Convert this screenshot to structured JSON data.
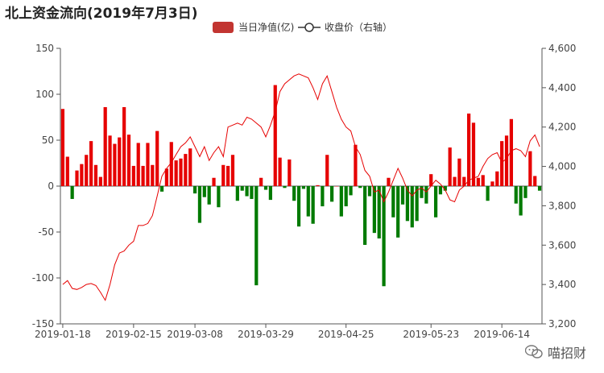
{
  "chart_data": {
    "type": "bar+line",
    "title": "北上资金流向(2019年7月3日)",
    "legend": [
      {
        "name": "当日净值(亿)",
        "kind": "bar",
        "color": "#c23531"
      },
      {
        "name": "收盘价（右轴）",
        "kind": "line",
        "color": "#333333"
      }
    ],
    "x_tick_labels": [
      "2019-01-18",
      "2019-02-15",
      "2019-03-08",
      "2019-03-29",
      "2019-04-25",
      "2019-05-23",
      "2019-06-14"
    ],
    "x_tick_index": [
      0,
      15,
      28,
      43,
      60,
      78,
      93
    ],
    "y_left": {
      "min": -150,
      "max": 150,
      "ticks": [
        -150,
        -100,
        -50,
        0,
        50,
        100,
        150
      ]
    },
    "y_right": {
      "min": 3200,
      "max": 4600,
      "ticks": [
        "3,200",
        "3,400",
        "3,600",
        "3,800",
        "4,000",
        "4,200",
        "4,400",
        "4,600"
      ]
    },
    "positive_color": "#e60000",
    "negative_color": "#007a00",
    "line_color": "#e60000",
    "net_inflow": [
      84,
      32,
      -14,
      17,
      24,
      34,
      49,
      23,
      10,
      86,
      55,
      46,
      53,
      86,
      56,
      22,
      47,
      22,
      47,
      23,
      60,
      -6,
      19,
      48,
      28,
      30,
      35,
      41,
      -8,
      -40,
      -12,
      -20,
      9,
      -23,
      23,
      22,
      34,
      -16,
      -5,
      -11,
      -14,
      -108,
      9,
      -4,
      -15,
      110,
      31,
      -2,
      29,
      -16,
      -44,
      -3,
      -33,
      -41,
      1,
      -22,
      34,
      -17,
      0,
      -33,
      -22,
      -10,
      45,
      -2,
      -64,
      -11,
      -51,
      -57,
      -109,
      9,
      -34,
      -56,
      -20,
      -38,
      -45,
      -38,
      -13,
      -19,
      13,
      -34,
      -9,
      -5,
      42,
      10,
      30,
      10,
      79,
      69,
      9,
      12,
      -16,
      5,
      16,
      49,
      55,
      73,
      -19,
      -32,
      -13,
      38,
      11,
      -5
    ],
    "close": [
      3400,
      3420,
      3380,
      3375,
      3385,
      3400,
      3405,
      3395,
      3360,
      3320,
      3400,
      3500,
      3560,
      3570,
      3600,
      3620,
      3700,
      3700,
      3710,
      3750,
      3850,
      3950,
      3990,
      4020,
      4060,
      4100,
      4120,
      4150,
      4100,
      4050,
      4100,
      4030,
      4070,
      4100,
      4050,
      4200,
      4210,
      4220,
      4210,
      4250,
      4240,
      4220,
      4200,
      4150,
      4210,
      4280,
      4380,
      4420,
      4440,
      4460,
      4470,
      4460,
      4450,
      4400,
      4340,
      4420,
      4460,
      4380,
      4300,
      4240,
      4200,
      4180,
      4100,
      4060,
      3980,
      3950,
      3870,
      3880,
      3820,
      3870,
      3930,
      3990,
      3940,
      3880,
      3850,
      3880,
      3890,
      3870,
      3900,
      3930,
      3910,
      3880,
      3830,
      3820,
      3880,
      3900,
      3930,
      3940,
      3950,
      4000,
      4040,
      4060,
      4070,
      4020,
      4040,
      4080,
      4090,
      4080,
      4050,
      4130,
      4160,
      4100
    ]
  },
  "watermark": {
    "text": "喵招财",
    "icon": "wechat-icon"
  }
}
